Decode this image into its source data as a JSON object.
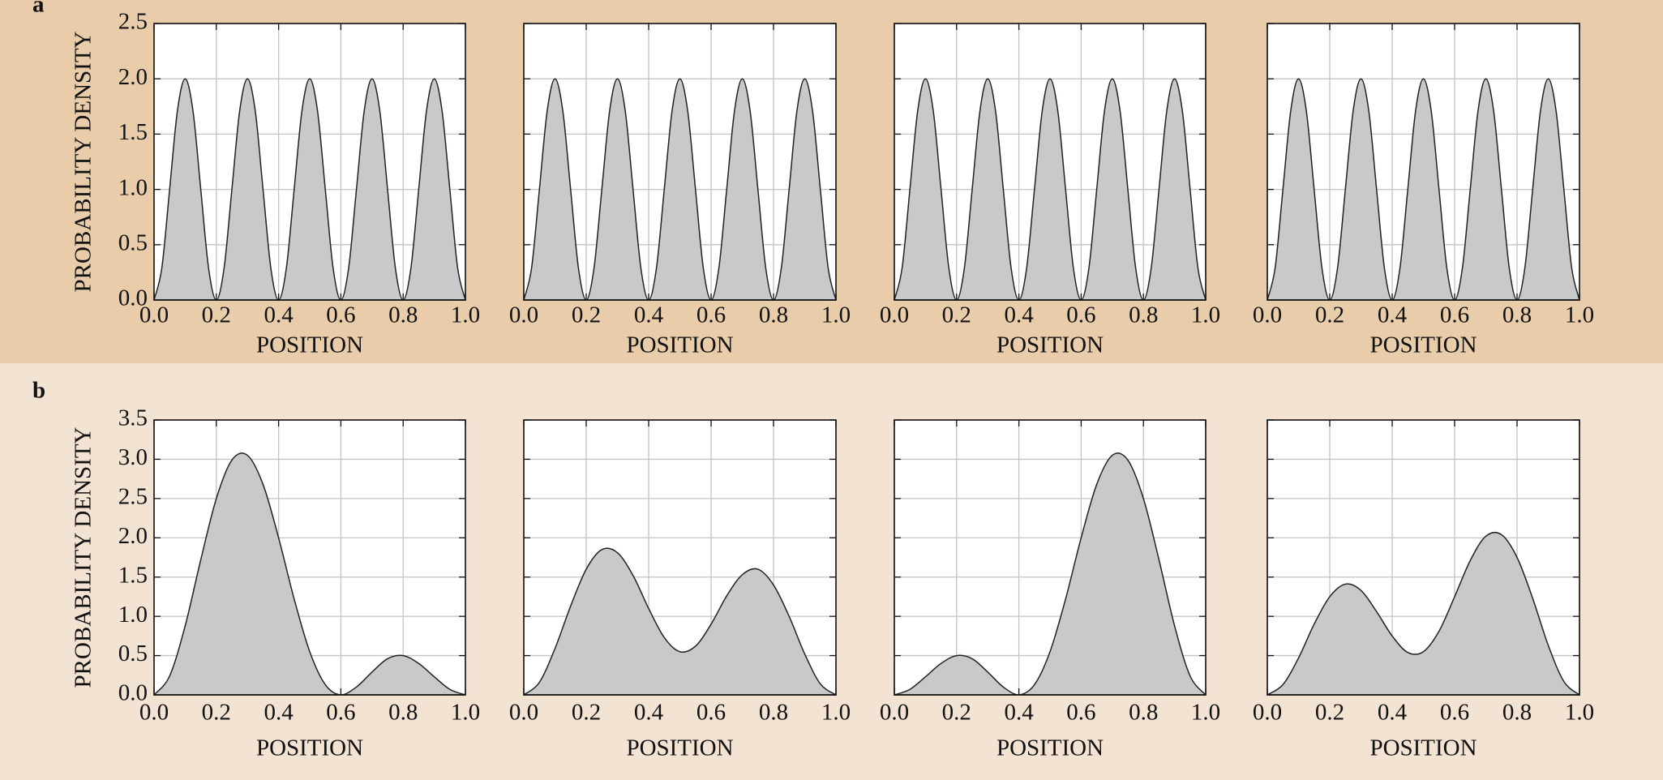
{
  "panel_labels": [
    "a",
    "b"
  ],
  "chart_data": [
    {
      "type": "area",
      "x": [
        0,
        0.025,
        0.05,
        0.075,
        0.1,
        0.125,
        0.15,
        0.175,
        0.2,
        0.225,
        0.25,
        0.275,
        0.3,
        0.325,
        0.35,
        0.375,
        0.4,
        0.425,
        0.45,
        0.475,
        0.5,
        0.525,
        0.55,
        0.575,
        0.6,
        0.625,
        0.65,
        0.675,
        0.7,
        0.725,
        0.75,
        0.775,
        0.8,
        0.825,
        0.85,
        0.875,
        0.9,
        0.925,
        0.95,
        0.975,
        1
      ],
      "values": [
        0,
        0.29,
        1,
        1.71,
        2,
        1.71,
        1,
        0.29,
        0,
        0.29,
        1,
        1.71,
        2,
        1.71,
        1,
        0.29,
        0,
        0.29,
        1,
        1.71,
        2,
        1.71,
        1,
        0.29,
        0,
        0.29,
        1,
        1.71,
        2,
        1.71,
        1,
        0.29,
        0,
        0.29,
        1,
        1.71,
        2,
        1.71,
        1,
        0.29,
        0
      ],
      "xlim": [
        0,
        1
      ],
      "ylim": [
        0,
        2.5
      ],
      "xticks": [
        {
          "value": 0,
          "label": "0.0"
        },
        0.2,
        0.4,
        0.6,
        0.8,
        {
          "value": 1,
          "label": "1.0"
        }
      ],
      "yticks": [
        {
          "value": 0,
          "label": "0.0"
        },
        0.5,
        {
          "value": 1,
          "label": "1.0"
        },
        1.5,
        {
          "value": 2,
          "label": "2.0"
        },
        2.5
      ],
      "show_ytick_labels": true,
      "grid": true,
      "color": "#c8c9cb",
      "xlabel": "POSITION",
      "ylabel": "PROBABILITY DENSITY"
    },
    {
      "type": "area",
      "x": [
        0,
        0.025,
        0.05,
        0.075,
        0.1,
        0.125,
        0.15,
        0.175,
        0.2,
        0.225,
        0.25,
        0.275,
        0.3,
        0.325,
        0.35,
        0.375,
        0.4,
        0.425,
        0.45,
        0.475,
        0.5,
        0.525,
        0.55,
        0.575,
        0.6,
        0.625,
        0.65,
        0.675,
        0.7,
        0.725,
        0.75,
        0.775,
        0.8,
        0.825,
        0.85,
        0.875,
        0.9,
        0.925,
        0.95,
        0.975,
        1
      ],
      "values": [
        0,
        0.29,
        1,
        1.71,
        2,
        1.71,
        1,
        0.29,
        0,
        0.29,
        1,
        1.71,
        2,
        1.71,
        1,
        0.29,
        0,
        0.29,
        1,
        1.71,
        2,
        1.71,
        1,
        0.29,
        0,
        0.29,
        1,
        1.71,
        2,
        1.71,
        1,
        0.29,
        0,
        0.29,
        1,
        1.71,
        2,
        1.71,
        1,
        0.29,
        0
      ],
      "xlim": [
        0,
        1
      ],
      "ylim": [
        0,
        2.5
      ],
      "xticks": [
        {
          "value": 0,
          "label": "0.0"
        },
        0.2,
        0.4,
        0.6,
        0.8,
        {
          "value": 1,
          "label": "1.0"
        }
      ],
      "yticks": [
        0,
        0.5,
        1,
        1.5,
        2,
        2.5
      ],
      "show_ytick_labels": false,
      "grid": true,
      "color": "#c8c9cb",
      "xlabel": "POSITION"
    },
    {
      "type": "area",
      "x": [
        0,
        0.025,
        0.05,
        0.075,
        0.1,
        0.125,
        0.15,
        0.175,
        0.2,
        0.225,
        0.25,
        0.275,
        0.3,
        0.325,
        0.35,
        0.375,
        0.4,
        0.425,
        0.45,
        0.475,
        0.5,
        0.525,
        0.55,
        0.575,
        0.6,
        0.625,
        0.65,
        0.675,
        0.7,
        0.725,
        0.75,
        0.775,
        0.8,
        0.825,
        0.85,
        0.875,
        0.9,
        0.925,
        0.95,
        0.975,
        1
      ],
      "values": [
        0,
        0.29,
        1,
        1.71,
        2,
        1.71,
        1,
        0.29,
        0,
        0.29,
        1,
        1.71,
        2,
        1.71,
        1,
        0.29,
        0,
        0.29,
        1,
        1.71,
        2,
        1.71,
        1,
        0.29,
        0,
        0.29,
        1,
        1.71,
        2,
        1.71,
        1,
        0.29,
        0,
        0.29,
        1,
        1.71,
        2,
        1.71,
        1,
        0.29,
        0
      ],
      "xlim": [
        0,
        1
      ],
      "ylim": [
        0,
        2.5
      ],
      "xticks": [
        {
          "value": 0,
          "label": "0.0"
        },
        0.2,
        0.4,
        0.6,
        0.8,
        {
          "value": 1,
          "label": "1.0"
        }
      ],
      "yticks": [
        0,
        0.5,
        1,
        1.5,
        2,
        2.5
      ],
      "show_ytick_labels": false,
      "grid": true,
      "color": "#c8c9cb",
      "xlabel": "POSITION"
    },
    {
      "type": "area",
      "x": [
        0,
        0.025,
        0.05,
        0.075,
        0.1,
        0.125,
        0.15,
        0.175,
        0.2,
        0.225,
        0.25,
        0.275,
        0.3,
        0.325,
        0.35,
        0.375,
        0.4,
        0.425,
        0.45,
        0.475,
        0.5,
        0.525,
        0.55,
        0.575,
        0.6,
        0.625,
        0.65,
        0.675,
        0.7,
        0.725,
        0.75,
        0.775,
        0.8,
        0.825,
        0.85,
        0.875,
        0.9,
        0.925,
        0.95,
        0.975,
        1
      ],
      "values": [
        0,
        0.29,
        1,
        1.71,
        2,
        1.71,
        1,
        0.29,
        0,
        0.29,
        1,
        1.71,
        2,
        1.71,
        1,
        0.29,
        0,
        0.29,
        1,
        1.71,
        2,
        1.71,
        1,
        0.29,
        0,
        0.29,
        1,
        1.71,
        2,
        1.71,
        1,
        0.29,
        0,
        0.29,
        1,
        1.71,
        2,
        1.71,
        1,
        0.29,
        0
      ],
      "xlim": [
        0,
        1
      ],
      "ylim": [
        0,
        2.5
      ],
      "xticks": [
        {
          "value": 0,
          "label": "0.0"
        },
        0.2,
        0.4,
        0.6,
        0.8,
        {
          "value": 1,
          "label": "1.0"
        }
      ],
      "yticks": [
        0,
        0.5,
        1,
        1.5,
        2,
        2.5
      ],
      "show_ytick_labels": false,
      "grid": true,
      "color": "#c8c9cb",
      "xlabel": "POSITION"
    },
    {
      "type": "area",
      "x": [
        0,
        0.05,
        0.1,
        0.15,
        0.2,
        0.25,
        0.3,
        0.35,
        0.4,
        0.45,
        0.5,
        0.55,
        0.6,
        0.65,
        0.7,
        0.75,
        0.8,
        0.85,
        0.9,
        0.95,
        1
      ],
      "values": [
        0,
        0.24,
        0.88,
        1.72,
        2.5,
        2.99,
        3.05,
        2.68,
        2,
        1.22,
        0.55,
        0.13,
        0,
        0.1,
        0.29,
        0.46,
        0.5,
        0.4,
        0.23,
        0.07,
        0
      ],
      "xlim": [
        0,
        1
      ],
      "ylim": [
        0,
        3.5
      ],
      "xticks": [
        {
          "value": 0,
          "label": "0.0"
        },
        0.2,
        0.4,
        0.6,
        0.8,
        {
          "value": 1,
          "label": "1.0"
        }
      ],
      "yticks": [
        {
          "value": 0,
          "label": "0.0"
        },
        0.5,
        {
          "value": 1,
          "label": "1.0"
        },
        1.5,
        {
          "value": 2,
          "label": "2.0"
        },
        2.5,
        {
          "value": 3,
          "label": "3.0"
        },
        3.5
      ],
      "show_ytick_labels": true,
      "grid": true,
      "color": "#c8c9cb",
      "xlabel": "POSITION",
      "ylabel": "PROBABILITY DENSITY"
    },
    {
      "type": "area",
      "x": [
        0,
        0.05,
        0.1,
        0.15,
        0.2,
        0.25,
        0.3,
        0.35,
        0.4,
        0.45,
        0.5,
        0.55,
        0.6,
        0.65,
        0.7,
        0.75,
        0.8,
        0.85,
        0.9,
        0.95,
        1
      ],
      "values": [
        0,
        0.16,
        0.59,
        1.13,
        1.6,
        1.85,
        1.81,
        1.52,
        1.1,
        0.73,
        0.55,
        0.62,
        0.9,
        1.26,
        1.53,
        1.6,
        1.4,
        1,
        0.52,
        0.14,
        0
      ],
      "xlim": [
        0,
        1
      ],
      "ylim": [
        0,
        3.5
      ],
      "xticks": [
        {
          "value": 0,
          "label": "0.0"
        },
        0.2,
        0.4,
        0.6,
        0.8,
        {
          "value": 1,
          "label": "1.0"
        }
      ],
      "yticks": [
        0,
        0.5,
        1,
        1.5,
        2,
        2.5,
        3,
        3.5
      ],
      "show_ytick_labels": false,
      "grid": true,
      "color": "#c8c9cb",
      "xlabel": "POSITION"
    },
    {
      "type": "area",
      "x": [
        0,
        0.05,
        0.1,
        0.15,
        0.2,
        0.25,
        0.3,
        0.35,
        0.4,
        0.45,
        0.5,
        0.55,
        0.6,
        0.65,
        0.7,
        0.75,
        0.8,
        0.85,
        0.9,
        0.95,
        1
      ],
      "values": [
        0,
        0.07,
        0.23,
        0.4,
        0.5,
        0.46,
        0.29,
        0.1,
        0,
        0.13,
        0.55,
        1.22,
        2,
        2.68,
        3.05,
        2.99,
        2.5,
        1.72,
        0.88,
        0.24,
        0
      ],
      "xlim": [
        0,
        1
      ],
      "ylim": [
        0,
        3.5
      ],
      "xticks": [
        {
          "value": 0,
          "label": "0.0"
        },
        0.2,
        0.4,
        0.6,
        0.8,
        {
          "value": 1,
          "label": "1.0"
        }
      ],
      "yticks": [
        0,
        0.5,
        1,
        1.5,
        2,
        2.5,
        3,
        3.5
      ],
      "show_ytick_labels": false,
      "grid": true,
      "color": "#c8c9cb",
      "xlabel": "POSITION"
    },
    {
      "type": "area",
      "x": [
        0,
        0.05,
        0.1,
        0.15,
        0.2,
        0.25,
        0.3,
        0.35,
        0.4,
        0.45,
        0.5,
        0.55,
        0.6,
        0.65,
        0.7,
        0.75,
        0.8,
        0.85,
        0.9,
        0.95,
        1
      ],
      "values": [
        0,
        0.13,
        0.47,
        0.9,
        1.25,
        1.41,
        1.33,
        1.06,
        0.75,
        0.54,
        0.55,
        0.81,
        1.25,
        1.71,
        2.02,
        2.04,
        1.75,
        1.23,
        0.63,
        0.17,
        0
      ],
      "xlim": [
        0,
        1
      ],
      "ylim": [
        0,
        3.5
      ],
      "xticks": [
        {
          "value": 0,
          "label": "0.0"
        },
        0.2,
        0.4,
        0.6,
        0.8,
        {
          "value": 1,
          "label": "1.0"
        }
      ],
      "yticks": [
        0,
        0.5,
        1,
        1.5,
        2,
        2.5,
        3,
        3.5
      ],
      "show_ytick_labels": false,
      "grid": true,
      "color": "#c8c9cb",
      "xlabel": "POSITION"
    }
  ]
}
